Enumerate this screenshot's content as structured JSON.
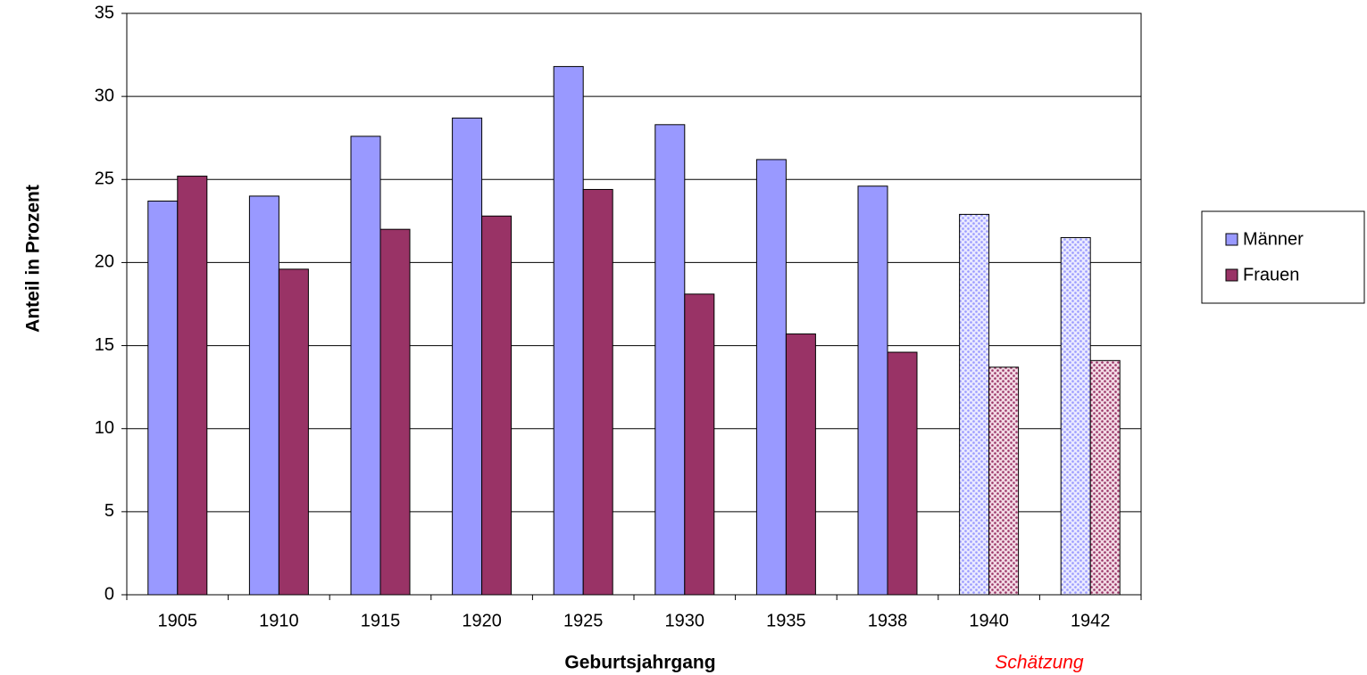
{
  "chart_data": {
    "type": "bar",
    "categories": [
      "1905",
      "1910",
      "1915",
      "1920",
      "1925",
      "1930",
      "1935",
      "1938",
      "1940",
      "1942"
    ],
    "series": [
      {
        "name": "Männer",
        "color": "#9999ff",
        "values": [
          23.7,
          24.0,
          27.6,
          28.7,
          31.8,
          28.3,
          26.2,
          24.6,
          22.9,
          21.5
        ]
      },
      {
        "name": "Frauen",
        "color": "#993366",
        "values": [
          25.2,
          19.6,
          22.0,
          22.8,
          24.4,
          18.1,
          15.7,
          14.6,
          13.7,
          14.1
        ]
      }
    ],
    "estimated": [
      false,
      false,
      false,
      false,
      false,
      false,
      false,
      false,
      true,
      true
    ],
    "x_label": "Geburtsjahrgang",
    "y_label": "Anteil in Prozent",
    "annotation": "Schätzung",
    "ylim": [
      0,
      35
    ],
    "yticks": [
      0,
      5,
      10,
      15,
      20,
      25,
      30,
      35
    ],
    "grid": true,
    "legend": "right"
  }
}
